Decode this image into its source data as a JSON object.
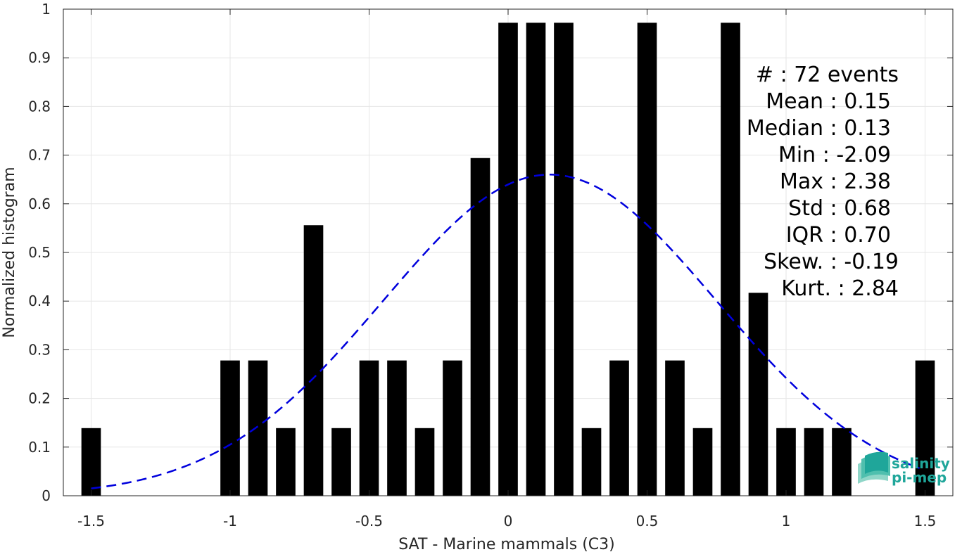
{
  "chart_data": {
    "type": "bar",
    "xlabel": "SAT - Marine mammals (C3)",
    "ylabel": "Normalized histogram",
    "xlim": [
      -1.6,
      1.6
    ],
    "ylim": [
      0,
      1
    ],
    "grid": true,
    "x_ticks": [
      "-1.5",
      "-1",
      "-0.5",
      "0",
      "0.5",
      "1",
      "1.5"
    ],
    "x_tick_values": [
      -1.5,
      -1,
      -0.5,
      0,
      0.5,
      1,
      1.5
    ],
    "y_ticks": [
      "0",
      "0.1",
      "0.2",
      "0.3",
      "0.4",
      "0.5",
      "0.6",
      "0.7",
      "0.8",
      "0.9",
      "1"
    ],
    "y_tick_values": [
      0,
      0.1,
      0.2,
      0.3,
      0.4,
      0.5,
      0.6,
      0.7,
      0.8,
      0.9,
      1
    ],
    "bin_width": 0.1,
    "bar_fill_fraction": 0.7,
    "bar_color": "#000000",
    "x": [
      -1.5,
      -1.0,
      -0.9,
      -0.8,
      -0.7,
      -0.6,
      -0.5,
      -0.4,
      -0.3,
      -0.2,
      -0.1,
      0.0,
      0.1,
      0.2,
      0.3,
      0.4,
      0.5,
      0.6,
      0.7,
      0.8,
      0.9,
      1.0,
      1.1,
      1.2,
      1.5
    ],
    "values": [
      0.139,
      0.278,
      0.278,
      0.139,
      0.556,
      0.139,
      0.278,
      0.278,
      0.139,
      0.278,
      0.694,
      0.972,
      0.972,
      0.972,
      0.139,
      0.278,
      0.972,
      0.278,
      0.139,
      0.972,
      0.417,
      0.139,
      0.139,
      0.139,
      0.278
    ],
    "fit_curve": {
      "style": "dashed",
      "color": "#0000dd",
      "x_range": [
        -1.5,
        1.48
      ],
      "mean": 0.15,
      "std": 0.6,
      "peak": 0.66
    }
  },
  "stats": [
    {
      "label": "#  : 72 events"
    },
    {
      "label": "Mean : 0.15"
    },
    {
      "label": "Median : 0.13"
    },
    {
      "label": "Min : -2.09"
    },
    {
      "label": "Max : 2.38"
    },
    {
      "label": "Std : 0.68"
    },
    {
      "label": "IQR : 0.70"
    },
    {
      "label": "Skew. : -0.19"
    },
    {
      "label": "Kurt. : 2.84"
    }
  ],
  "logo": {
    "line1": "salinity",
    "line2": "pi-mep",
    "color": "#1fa69a"
  }
}
